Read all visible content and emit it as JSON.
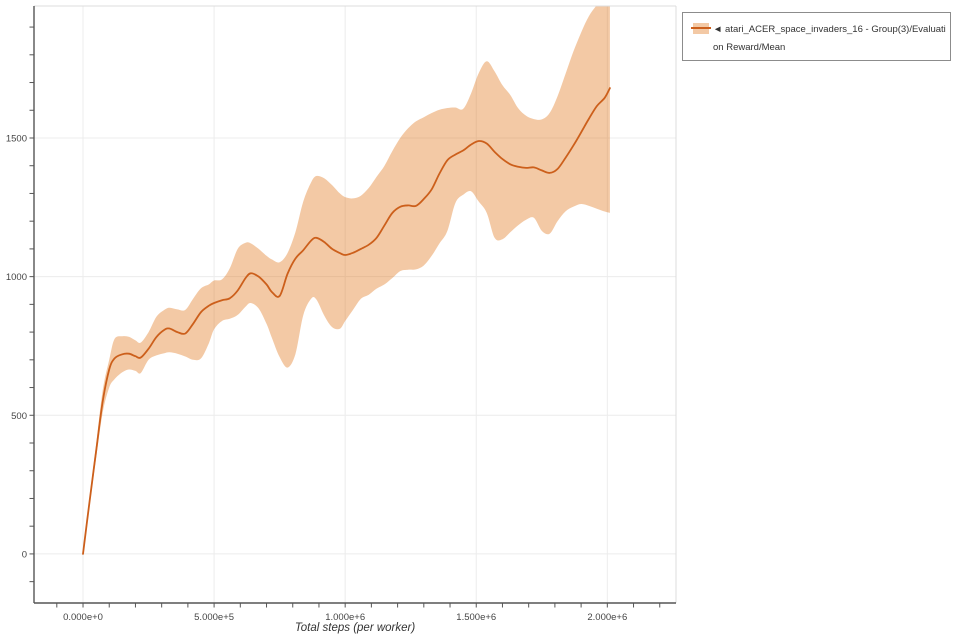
{
  "page": {
    "background": "#ffffff"
  },
  "legend": {
    "series_label": "◄ atari_ACER_space_invaders_16 - Group(3)/Evaluation Reward/Mean",
    "line1": "◄ atari_ACER_space_invaders_16 - Group(3)/Evaluati",
    "line2": "on Reward/Mean"
  },
  "chart_data": {
    "type": "line",
    "title": "",
    "xlabel": "Total steps (per worker)",
    "ylabel": "",
    "grid": true,
    "legend_position": "top-right",
    "xlim": [
      -187000,
      2262000
    ],
    "ylim": [
      -177,
      1976
    ],
    "x_ticks": {
      "minor_step": 100000,
      "major_values": [
        0,
        500000,
        1000000,
        1500000,
        2000000
      ],
      "major_labels": [
        "0.000e+0",
        "5.000e+5",
        "1.000e+6",
        "1.500e+6",
        "2.000e+6"
      ]
    },
    "y_ticks": {
      "minor_step": 100,
      "major_values": [
        0,
        500,
        1000,
        1500
      ],
      "major_labels": [
        "0",
        "500",
        "1000",
        "1500"
      ]
    },
    "colors": {
      "line": "#cc5f1b",
      "band": "#df7112",
      "band_opacity": 0.38,
      "axis": "#555555",
      "frame": "#dcdcdc",
      "grid": "#ececec",
      "tick_text": "#454545"
    },
    "series": [
      {
        "name": "atari_ACER_space_invaders_16 - Group(3)/Evaluation Reward/Mean",
        "x": [
          0,
          25000,
          50000,
          75000,
          100000,
          120000,
          150000,
          175000,
          200000,
          220000,
          250000,
          280000,
          310000,
          330000,
          360000,
          390000,
          420000,
          450000,
          480000,
          500000,
          530000,
          560000,
          590000,
          620000,
          640000,
          670000,
          700000,
          720000,
          750000,
          780000,
          810000,
          840000,
          870000,
          890000,
          920000,
          950000,
          980000,
          1000000,
          1030000,
          1060000,
          1090000,
          1120000,
          1150000,
          1180000,
          1210000,
          1240000,
          1270000,
          1300000,
          1330000,
          1360000,
          1390000,
          1420000,
          1450000,
          1480000,
          1510000,
          1540000,
          1570000,
          1600000,
          1630000,
          1660000,
          1690000,
          1720000,
          1750000,
          1780000,
          1810000,
          1840000,
          1870000,
          1900000,
          1930000,
          1960000,
          1990000,
          2010000
        ],
        "mean": [
          0,
          190,
          370,
          550,
          665,
          705,
          720,
          722,
          713,
          708,
          740,
          782,
          808,
          813,
          800,
          795,
          830,
          872,
          895,
          905,
          915,
          922,
          950,
          995,
          1012,
          1000,
          972,
          945,
          930,
          1010,
          1065,
          1095,
          1130,
          1140,
          1125,
          1100,
          1085,
          1078,
          1086,
          1100,
          1115,
          1140,
          1185,
          1230,
          1252,
          1257,
          1255,
          1280,
          1315,
          1372,
          1420,
          1440,
          1455,
          1476,
          1489,
          1480,
          1450,
          1424,
          1405,
          1396,
          1392,
          1394,
          1383,
          1374,
          1388,
          1428,
          1472,
          1520,
          1570,
          1615,
          1645,
          1680
        ],
        "band_upper": [
          0,
          205,
          395,
          590,
          700,
          775,
          785,
          783,
          770,
          762,
          800,
          855,
          880,
          888,
          882,
          880,
          920,
          958,
          972,
          986,
          990,
          1030,
          1100,
          1122,
          1120,
          1100,
          1075,
          1062,
          1052,
          1085,
          1160,
          1270,
          1340,
          1363,
          1355,
          1330,
          1300,
          1287,
          1282,
          1292,
          1320,
          1360,
          1400,
          1453,
          1500,
          1535,
          1560,
          1575,
          1590,
          1602,
          1608,
          1610,
          1605,
          1660,
          1735,
          1777,
          1740,
          1690,
          1655,
          1607,
          1580,
          1568,
          1567,
          1590,
          1650,
          1730,
          1810,
          1880,
          1940,
          1980,
          2020,
          2040
        ],
        "band_lower": [
          0,
          175,
          345,
          510,
          600,
          630,
          655,
          665,
          660,
          652,
          700,
          716,
          724,
          727,
          722,
          712,
          700,
          705,
          760,
          810,
          840,
          848,
          862,
          892,
          905,
          885,
          830,
          780,
          710,
          672,
          720,
          860,
          920,
          918,
          860,
          818,
          812,
          840,
          880,
          920,
          935,
          957,
          972,
          995,
          1020,
          1025,
          1026,
          1040,
          1075,
          1120,
          1165,
          1265,
          1295,
          1308,
          1270,
          1230,
          1140,
          1135,
          1160,
          1185,
          1205,
          1212,
          1165,
          1155,
          1200,
          1235,
          1252,
          1262,
          1255,
          1245,
          1235,
          1230
        ]
      }
    ]
  }
}
